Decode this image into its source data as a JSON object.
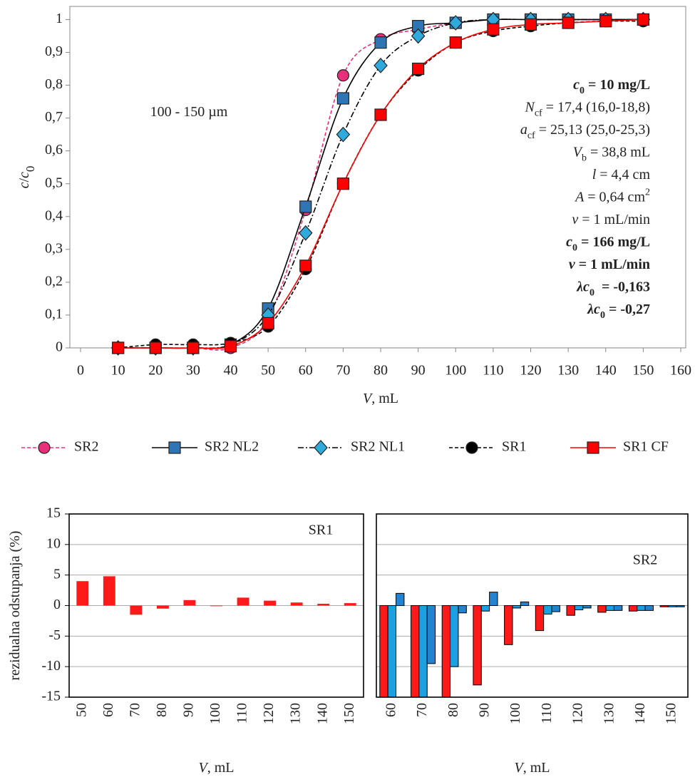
{
  "chart_data": [
    {
      "type": "line",
      "x_label": {
        "parts": [
          {
            "text": "V",
            "style": "italic"
          },
          {
            "text": ", mL"
          }
        ]
      },
      "y_label": {
        "parts": [
          {
            "text": "c",
            "style": "italic"
          },
          {
            "text": "/"
          },
          {
            "text": "c",
            "style": "italic"
          },
          {
            "text": "0",
            "style": "sub"
          }
        ]
      },
      "xlim": [
        0,
        160
      ],
      "xticks": [
        0,
        10,
        20,
        30,
        40,
        50,
        60,
        70,
        80,
        90,
        100,
        110,
        120,
        130,
        140,
        150,
        160
      ],
      "ylim": [
        0,
        1.04
      ],
      "yticks": [
        0,
        {
          "value": 0.1,
          "label": "0,1"
        },
        {
          "value": 0.2,
          "label": "0,2"
        },
        {
          "value": 0.3,
          "label": "0,3"
        },
        {
          "value": 0.4,
          "label": "0,4"
        },
        {
          "value": 0.5,
          "label": "0,5"
        },
        {
          "value": 0.6,
          "label": "0,6"
        },
        {
          "value": 0.7,
          "label": "0,7"
        },
        {
          "value": 0.8,
          "label": "0,8"
        },
        {
          "value": 0.9,
          "label": "0,9"
        },
        1
      ],
      "grid": false,
      "legend": "bottom",
      "x": [
        10,
        20,
        30,
        40,
        50,
        60,
        70,
        80,
        90,
        100,
        110,
        120,
        130,
        140,
        150
      ],
      "series": [
        {
          "name": "SR2",
          "color": "#e8307a",
          "dash": "dashed",
          "marker": "circle",
          "marker_color": "#e8307a",
          "values": [
            0,
            0,
            0,
            0,
            0.09,
            0.42,
            0.83,
            0.94,
            0.97,
            0.99,
            1.0,
            1.0,
            1.0,
            1.0,
            1.0
          ]
        },
        {
          "name": "SR2 NL2",
          "color": "#000000",
          "dash": "solid",
          "marker": "square",
          "marker_color": "#2e75b6",
          "values": [
            0,
            0,
            0,
            0.01,
            0.12,
            0.43,
            0.76,
            0.93,
            0.98,
            0.99,
            1.0,
            1.0,
            1.0,
            1.0,
            1.0
          ]
        },
        {
          "name": "SR2 NL1",
          "color": "#000000",
          "dash": "dashdot",
          "marker": "diamond",
          "marker_color": "#2eaadc",
          "values": [
            0,
            0,
            0,
            0.01,
            0.1,
            0.35,
            0.65,
            0.86,
            0.95,
            0.99,
            1.0,
            1.0,
            1.0,
            1.0,
            1.0
          ]
        },
        {
          "name": "SR1",
          "color": "#000000",
          "dash": "dashed",
          "marker": "circle",
          "marker_color": "#000000",
          "values": [
            0,
            0.01,
            0.01,
            0.015,
            0.065,
            0.24,
            0.5,
            0.71,
            0.845,
            0.93,
            0.965,
            0.98,
            0.99,
            0.995,
            0.995
          ]
        },
        {
          "name": "SR1 CF",
          "color": "#ff0000",
          "dash": "solid",
          "marker": "square",
          "marker_color": "#ff0000",
          "values": [
            0,
            0,
            0,
            0.005,
            0.075,
            0.25,
            0.5,
            0.71,
            0.85,
            0.93,
            0.97,
            0.985,
            0.99,
            0.995,
            1.0
          ]
        }
      ],
      "annotations": [
        {
          "color": "#000000",
          "bold": false,
          "parts": [
            {
              "text": "100 - 150 µm"
            }
          ]
        },
        {
          "color": "#000000",
          "bold": true,
          "parts": [
            {
              "text": "c",
              "style": "italic"
            },
            {
              "text": "0",
              "style": "sub"
            },
            {
              "text": " = 10 mg/L"
            }
          ]
        },
        {
          "color": "#000000",
          "bold": false,
          "parts": [
            {
              "text": "N",
              "style": "italic"
            },
            {
              "text": "cf",
              "style": "sub"
            },
            {
              "text": " = 17,4 (16,0-18,8)"
            }
          ]
        },
        {
          "color": "#000000",
          "bold": false,
          "parts": [
            {
              "text": "a",
              "style": "italic"
            },
            {
              "text": "cf",
              "style": "sub"
            },
            {
              "text": " = 25,13 (25,0-25,3)"
            }
          ]
        },
        {
          "color": "#000000",
          "bold": false,
          "parts": [
            {
              "text": "V",
              "style": "italic"
            },
            {
              "text": "b",
              "style": "sub"
            },
            {
              "text": " = 38,8 mL"
            }
          ]
        },
        {
          "color": "#000000",
          "bold": false,
          "parts": [
            {
              "text": "l",
              "style": "italic"
            },
            {
              "text": " = 4,4 cm"
            }
          ]
        },
        {
          "color": "#000000",
          "bold": false,
          "parts": [
            {
              "text": "A",
              "style": "italic"
            },
            {
              "text": " = 0,64 cm"
            },
            {
              "text": "2",
              "style": "sup"
            }
          ]
        },
        {
          "color": "#000000",
          "bold": false,
          "parts": [
            {
              "text": "v",
              "style": "italic"
            },
            {
              "text": " = 1 mL/min"
            }
          ]
        },
        {
          "color": "#e8307a",
          "bold": true,
          "parts": [
            {
              "text": "c",
              "style": "italic"
            },
            {
              "text": "0",
              "style": "sub"
            },
            {
              "text": " = 166 mg/L"
            }
          ]
        },
        {
          "color": "#e8307a",
          "bold": true,
          "parts": [
            {
              "text": "v",
              "style": "italic"
            },
            {
              "text": " = 1 mL/min"
            }
          ]
        },
        {
          "color": "#2eaadc",
          "bold": true,
          "parts": [
            {
              "text": "λc",
              "style": "italic"
            },
            {
              "text": "0",
              "style": "sub"
            },
            {
              "text": "  = -0,163"
            }
          ]
        },
        {
          "color": "#2e75b6",
          "bold": true,
          "parts": [
            {
              "text": "λc",
              "style": "italic"
            },
            {
              "text": "0",
              "style": "sub"
            },
            {
              "text": " = -0,27"
            }
          ]
        }
      ]
    },
    {
      "type": "bar",
      "title": "SR1",
      "x_label": {
        "parts": [
          {
            "text": "V",
            "style": "italic"
          },
          {
            "text": ", mL"
          }
        ]
      },
      "y_label": {
        "parts": [
          {
            "text": "rezidualna odstupanja (%)"
          }
        ]
      },
      "ylim": [
        -15,
        15
      ],
      "yticks": [
        -15,
        -10,
        -5,
        0,
        5,
        10,
        15
      ],
      "grid": true,
      "categories": [
        "50",
        "60",
        "70",
        "80",
        "90",
        "100",
        "110",
        "120",
        "130",
        "140",
        "150"
      ],
      "series": [
        {
          "color": "#ff1a1a",
          "edgecolor": "none",
          "values": [
            4.0,
            4.8,
            -1.5,
            -0.5,
            0.9,
            -0.1,
            1.3,
            0.8,
            0.5,
            0.3,
            0.4
          ]
        }
      ]
    },
    {
      "type": "bar",
      "title": "SR2",
      "x_label": {
        "parts": [
          {
            "text": "V",
            "style": "italic"
          },
          {
            "text": ", mL"
          }
        ]
      },
      "ylim": [
        -15,
        15
      ],
      "yticks": [
        -15,
        -10,
        -5,
        0,
        5,
        10,
        15
      ],
      "grid": true,
      "categories": [
        "60",
        "70",
        "80",
        "90",
        "100",
        "110",
        "120",
        "130",
        "140",
        "150"
      ],
      "series": [
        {
          "color": "#ff1a1a",
          "edgecolor": "#000000",
          "values": [
            -15,
            -15,
            -15,
            -13,
            -6.4,
            -4.1,
            -1.6,
            -1.1,
            -0.9,
            -0.2
          ]
        },
        {
          "color": "#1ba1e2",
          "edgecolor": "#000000",
          "values": [
            -15,
            -15,
            -10,
            -0.9,
            -0.4,
            -1.4,
            -0.7,
            -0.8,
            -0.8,
            -0.2
          ]
        },
        {
          "color": "#2383d0",
          "edgecolor": "#000000",
          "values": [
            2.0,
            -9.5,
            -1.2,
            2.2,
            0.6,
            -1.0,
            -0.4,
            -0.8,
            -0.8,
            -0.2
          ]
        }
      ]
    }
  ]
}
